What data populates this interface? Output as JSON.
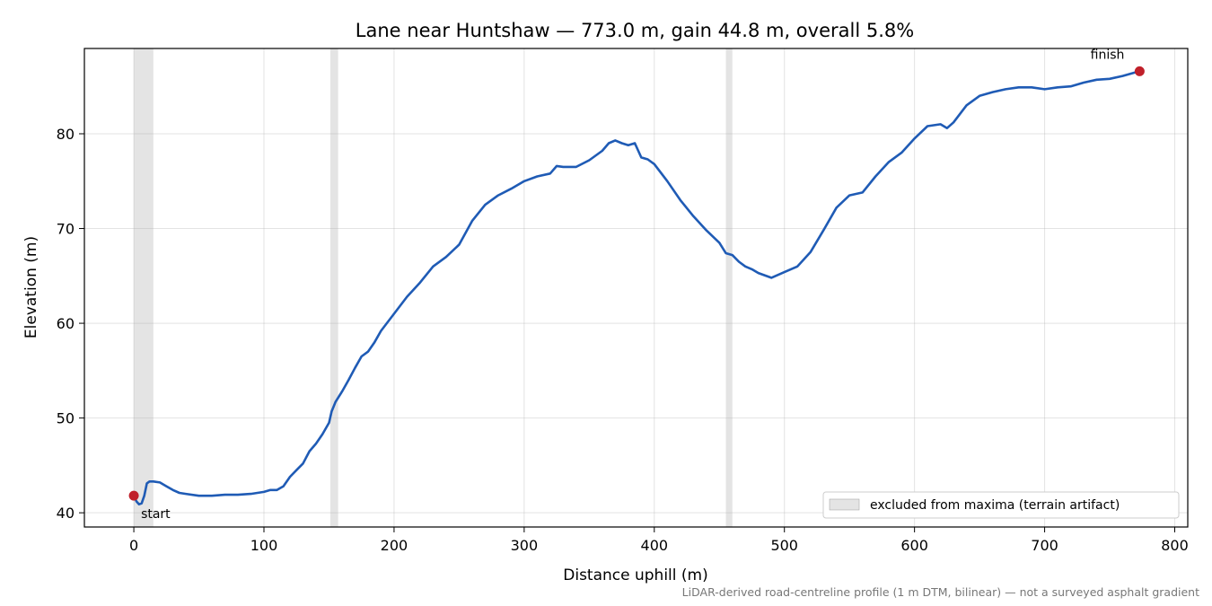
{
  "chart_data": {
    "type": "line",
    "title": "Lane near Huntshaw — 773.0 m, gain 44.8 m, overall 5.8%",
    "xlabel": "Distance uphill (m)",
    "ylabel": "Elevation (m)",
    "xlim": [
      -38,
      810
    ],
    "ylim": [
      38.5,
      89
    ],
    "xticks": [
      0,
      100,
      200,
      300,
      400,
      500,
      600,
      700,
      800
    ],
    "yticks": [
      40,
      50,
      60,
      70,
      80
    ],
    "grid": true,
    "line_color": "#1f5bb5",
    "marker_color": "#c0202a",
    "band_color": "#bbbbbb",
    "series": [
      {
        "x": [
          0,
          2,
          4,
          6,
          8,
          10,
          12,
          15,
          20,
          25,
          30,
          35,
          40,
          50,
          60,
          70,
          80,
          90,
          100,
          105,
          110,
          115,
          120,
          125,
          130,
          135,
          140,
          145,
          150,
          152,
          155,
          160,
          165,
          170,
          175,
          180,
          185,
          190,
          200,
          210,
          220,
          230,
          240,
          250,
          260,
          270,
          280,
          290,
          300,
          310,
          320,
          325,
          330,
          340,
          350,
          360,
          365,
          370,
          375,
          380,
          385,
          390,
          395,
          400,
          410,
          420,
          430,
          440,
          450,
          455,
          460,
          465,
          470,
          475,
          480,
          490,
          500,
          510,
          520,
          530,
          540,
          550,
          560,
          570,
          580,
          590,
          600,
          610,
          620,
          625,
          630,
          640,
          650,
          660,
          670,
          680,
          690,
          700,
          710,
          720,
          730,
          740,
          750,
          760,
          773
        ],
        "y": [
          41.8,
          41.2,
          40.9,
          41.0,
          41.8,
          43.1,
          43.3,
          43.3,
          43.2,
          42.8,
          42.4,
          42.1,
          42.0,
          41.8,
          41.8,
          41.9,
          41.9,
          42.0,
          42.2,
          42.4,
          42.4,
          42.8,
          43.8,
          44.5,
          45.2,
          46.5,
          47.3,
          48.3,
          49.5,
          50.7,
          51.7,
          52.8,
          54.0,
          55.3,
          56.5,
          57.0,
          58.0,
          59.2,
          61.0,
          62.8,
          64.3,
          66.0,
          67.0,
          68.3,
          70.8,
          72.5,
          73.5,
          74.2,
          75.0,
          75.5,
          75.8,
          76.6,
          76.5,
          76.5,
          77.2,
          78.2,
          79.0,
          79.3,
          79.0,
          78.8,
          79.0,
          77.5,
          77.3,
          76.8,
          75.0,
          73.0,
          71.3,
          69.8,
          68.5,
          67.4,
          67.2,
          66.5,
          66.0,
          65.7,
          65.3,
          64.8,
          65.4,
          66.0,
          67.5,
          69.8,
          72.2,
          73.5,
          73.8,
          75.5,
          77.0,
          78.0,
          79.5,
          80.8,
          81.0,
          80.6,
          81.2,
          83.0,
          84.0,
          84.4,
          84.7,
          84.9,
          84.9,
          84.7,
          84.9,
          85.0,
          85.4,
          85.7,
          85.8,
          86.1,
          86.6
        ]
      }
    ],
    "excluded_bands": [
      [
        0,
        15
      ],
      [
        151,
        157
      ],
      [
        455,
        460
      ]
    ],
    "markers": [
      {
        "x": 0,
        "y": 41.8,
        "label": "start"
      },
      {
        "x": 773,
        "y": 86.6,
        "label": "finish"
      }
    ],
    "legend": {
      "label": "excluded from maxima (terrain artifact)",
      "placement": "lower-right"
    },
    "footnote": "LiDAR-derived road-centreline profile (1 m DTM, bilinear) — not a surveyed asphalt gradient"
  }
}
